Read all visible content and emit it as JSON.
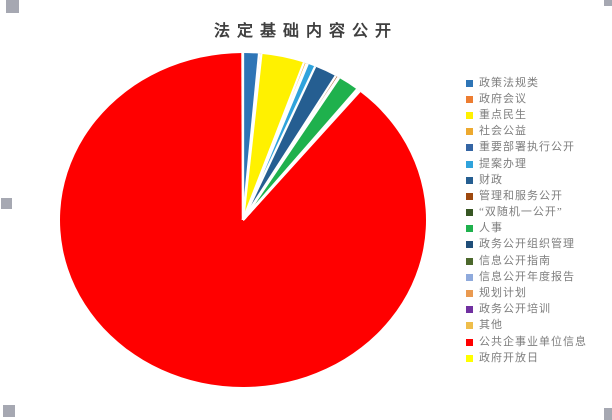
{
  "chart_data": {
    "type": "pie",
    "title": "法定基础内容公开",
    "legend_position": "right",
    "start_angle_deg": 0,
    "direction": "clockwise",
    "values_are": "estimated percent of whole",
    "series": [
      {
        "label": "政策法规类",
        "value": 1.4,
        "color": "#2E75B6"
      },
      {
        "label": "政府会议",
        "value": 0.2,
        "color": "#ED7D31"
      },
      {
        "label": "重点民生",
        "value": 3.8,
        "color": "#FFF100"
      },
      {
        "label": "社会公益",
        "value": 0.25,
        "color": "#EDA92F"
      },
      {
        "label": "重要部署执行公开",
        "value": 0.1,
        "color": "#3465A4"
      },
      {
        "label": "提案办理",
        "value": 0.7,
        "color": "#2FA3DC"
      },
      {
        "label": "财政",
        "value": 2.0,
        "color": "#255E91"
      },
      {
        "label": "管理和服务公开",
        "value": 0.25,
        "color": "#9E480E"
      },
      {
        "label": "“双随机一公开”",
        "value": 0.1,
        "color": "#375623"
      },
      {
        "label": "人事",
        "value": 1.9,
        "color": "#1FB14D"
      },
      {
        "label": "政务公开组织管理",
        "value": 0.05,
        "color": "#1F4E79"
      },
      {
        "label": "信息公开指南",
        "value": 0.05,
        "color": "#4C682C"
      },
      {
        "label": "信息公开年度报告",
        "value": 0.05,
        "color": "#8FAADC"
      },
      {
        "label": "规划计划",
        "value": 0.05,
        "color": "#EA9A50"
      },
      {
        "label": "政务公开培训",
        "value": 0.05,
        "color": "#7030A0"
      },
      {
        "label": "其他",
        "value": 0.05,
        "color": "#EFBE4B"
      },
      {
        "label": "公共企事业单位信息",
        "value": 88.95,
        "color": "#FF0000"
      },
      {
        "label": "政府开放日",
        "value": 0.05,
        "color": "#FFFF00"
      }
    ]
  },
  "colors": {
    "background": "#FFFFFF",
    "slice_border": "#FFFFFF",
    "title_text": "#3F3F3F",
    "legend_text": "#7E7E7E",
    "selection_handle": "#A6A8B2"
  }
}
